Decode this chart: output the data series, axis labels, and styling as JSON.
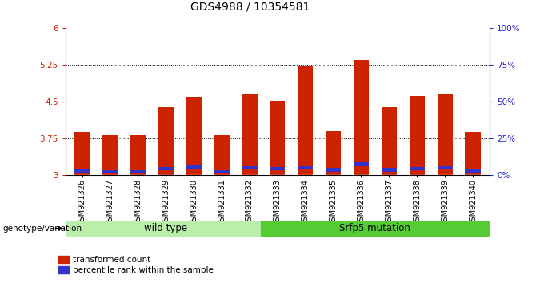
{
  "title": "GDS4988 / 10354581",
  "samples": [
    "GSM921326",
    "GSM921327",
    "GSM921328",
    "GSM921329",
    "GSM921330",
    "GSM921331",
    "GSM921332",
    "GSM921333",
    "GSM921334",
    "GSM921335",
    "GSM921336",
    "GSM921337",
    "GSM921338",
    "GSM921339",
    "GSM921340"
  ],
  "transformed_counts": [
    3.88,
    3.83,
    3.82,
    4.4,
    4.6,
    3.82,
    4.65,
    4.52,
    5.22,
    3.9,
    5.35,
    4.4,
    4.62,
    4.65,
    3.88
  ],
  "percentile_bottom": [
    3.05,
    3.05,
    3.04,
    3.1,
    3.13,
    3.04,
    3.12,
    3.1,
    3.12,
    3.08,
    3.18,
    3.08,
    3.1,
    3.12,
    3.06
  ],
  "percentile_height": [
    0.07,
    0.06,
    0.06,
    0.07,
    0.08,
    0.06,
    0.07,
    0.07,
    0.07,
    0.07,
    0.09,
    0.07,
    0.07,
    0.07,
    0.07
  ],
  "bar_color": "#cc2200",
  "percentile_color": "#3333cc",
  "ymin": 3.0,
  "ymax": 6.0,
  "yticks": [
    3.0,
    3.75,
    4.5,
    5.25,
    6.0
  ],
  "ytick_labels": [
    "3",
    "3.75",
    "4.5",
    "5.25",
    "6"
  ],
  "right_ytick_labels": [
    "0%",
    "25%",
    "50%",
    "75%",
    "100%"
  ],
  "right_ytick_pcts": [
    0,
    25,
    50,
    75,
    100
  ],
  "wild_type_count": 7,
  "mutation_count": 8,
  "wild_type_label": "wild type",
  "mutation_label": "Srfp5 mutation",
  "genotype_label": "genotype/variation",
  "legend_transformed": "transformed count",
  "legend_percentile": "percentile rank within the sample",
  "left_axis_color": "#cc2200",
  "right_axis_color": "#2222cc",
  "title_fontsize": 10,
  "tick_fontsize": 7,
  "label_fontsize": 8,
  "wild_type_color": "#bbeeaa",
  "mutation_color": "#55cc33",
  "bar_width": 0.55,
  "xtick_bg_color": "#cccccc"
}
